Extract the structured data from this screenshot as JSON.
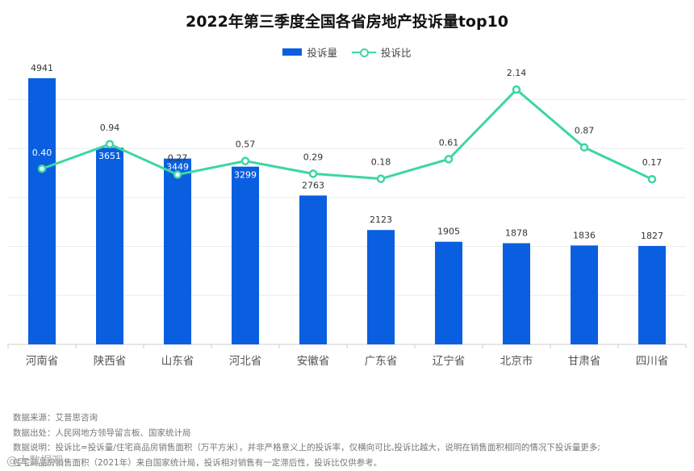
{
  "chart_data": {
    "type": "bar",
    "title": "2022年第三季度全国各省房地产投诉量top10",
    "categories": [
      "河南省",
      "陕西省",
      "山东省",
      "河北省",
      "安徽省",
      "广东省",
      "辽宁省",
      "北京市",
      "甘肃省",
      "四川省"
    ],
    "series": [
      {
        "name": "投诉量",
        "type": "bar",
        "color": "#0A5FE0",
        "values": [
          4941,
          3651,
          3449,
          3299,
          2763,
          2123,
          1905,
          1878,
          1836,
          1827
        ]
      },
      {
        "name": "投诉比",
        "type": "line",
        "color": "#3DD6A3",
        "values": [
          0.4,
          0.94,
          0.27,
          0.57,
          0.29,
          0.18,
          0.61,
          2.14,
          0.87,
          0.17
        ]
      }
    ],
    "bar_axis": {
      "ylim": [
        0,
        5000
      ]
    },
    "line_axis": {
      "ylim": [
        -3.46,
        2.46
      ]
    },
    "grid": true,
    "legend_position": "top-center"
  },
  "footer": {
    "lines": [
      "数据来源：艾普思咨询",
      "数据出处：人民网地方领导留言板、国家统计局",
      "数据说明：投诉比=投诉量/住宅商品房销售面积（万平方米），并非严格意义上的投诉率，仅横向可比,投诉比越大，说明在销售面积相同的情况下投诉量更多;",
      "住宅商品房销售面积（2021年）来自国家统计局，投诉相对销售有一定滞后性，投诉比仅供参考。"
    ]
  },
  "source_tag": "@大数据观"
}
